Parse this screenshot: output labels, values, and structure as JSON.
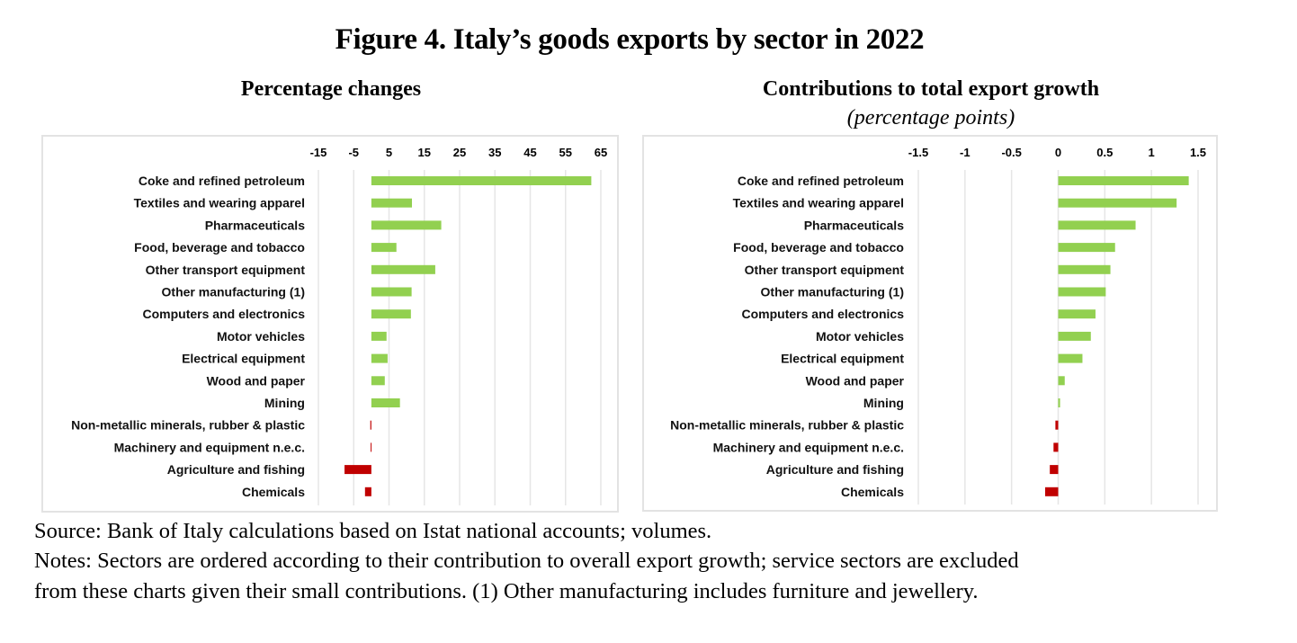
{
  "figure": {
    "title": "Figure 4. Italy’s goods exports by sector in 2022",
    "source": "Source: Bank of Italy calculations based on Istat national accounts; volumes.",
    "notes_line1": "Notes: Sectors are ordered according to their contribution to overall export growth; service sectors are excluded",
    "notes_line2": "from these charts given their small contributions. (1) Other manufacturing includes furniture and jewellery.",
    "colors": {
      "positive": "#92D050",
      "negative": "#C00000",
      "grid": "#e6e6e6"
    }
  },
  "chart_data": [
    {
      "type": "bar",
      "orientation": "horizontal",
      "title": "Percentage changes",
      "subtitle": "",
      "xlabel": "",
      "ylabel": "",
      "xlim": [
        -15,
        65
      ],
      "ticks": [
        -15,
        -5,
        5,
        15,
        25,
        35,
        45,
        55,
        65
      ],
      "tick_labels": [
        "-15",
        "-5",
        "5",
        "15",
        "25",
        "35",
        "45",
        "55",
        "65"
      ],
      "grid": true,
      "axis_position": "top",
      "categories": [
        "Coke and refined petroleum",
        "Textiles and wearing apparel",
        "Pharmaceuticals",
        "Food, beverage and tobacco",
        "Other transport equipment",
        "Other manufacturing (1)",
        "Computers and electronics",
        "Motor vehicles",
        "Electrical equipment",
        "Wood and paper",
        "Mining",
        "Non-metallic minerals, rubber & plastic",
        "Machinery and equipment n.e.c.",
        "Agriculture and fishing",
        "Chemicals"
      ],
      "values": [
        62.3,
        11.5,
        19.8,
        7.1,
        18.1,
        11.4,
        11.2,
        4.3,
        4.6,
        3.8,
        8.1,
        -0.3,
        -0.2,
        -7.6,
        -1.8
      ]
    },
    {
      "type": "bar",
      "orientation": "horizontal",
      "title": "Contributions to total export growth",
      "subtitle": "(percentage points)",
      "xlabel": "",
      "ylabel": "",
      "xlim": [
        -1.5,
        1.5
      ],
      "ticks": [
        -1.5,
        -1,
        -0.5,
        0,
        0.5,
        1,
        1.5
      ],
      "tick_labels": [
        "-1.5",
        "-1",
        "-0.5",
        "0",
        "0.5",
        "1",
        "1.5"
      ],
      "grid": true,
      "axis_position": "top",
      "categories": [
        "Coke and refined petroleum",
        "Textiles and wearing apparel",
        "Pharmaceuticals",
        "Food, beverage and tobacco",
        "Other transport equipment",
        "Other manufacturing (1)",
        "Computers and electronics",
        "Motor vehicles",
        "Electrical equipment",
        "Wood and paper",
        "Mining",
        "Non-metallic minerals, rubber & plastic",
        "Machinery and equipment n.e.c.",
        "Agriculture and fishing",
        "Chemicals"
      ],
      "values": [
        1.4,
        1.27,
        0.83,
        0.61,
        0.56,
        0.51,
        0.4,
        0.35,
        0.26,
        0.07,
        0.02,
        -0.03,
        -0.05,
        -0.09,
        -0.14
      ]
    }
  ]
}
